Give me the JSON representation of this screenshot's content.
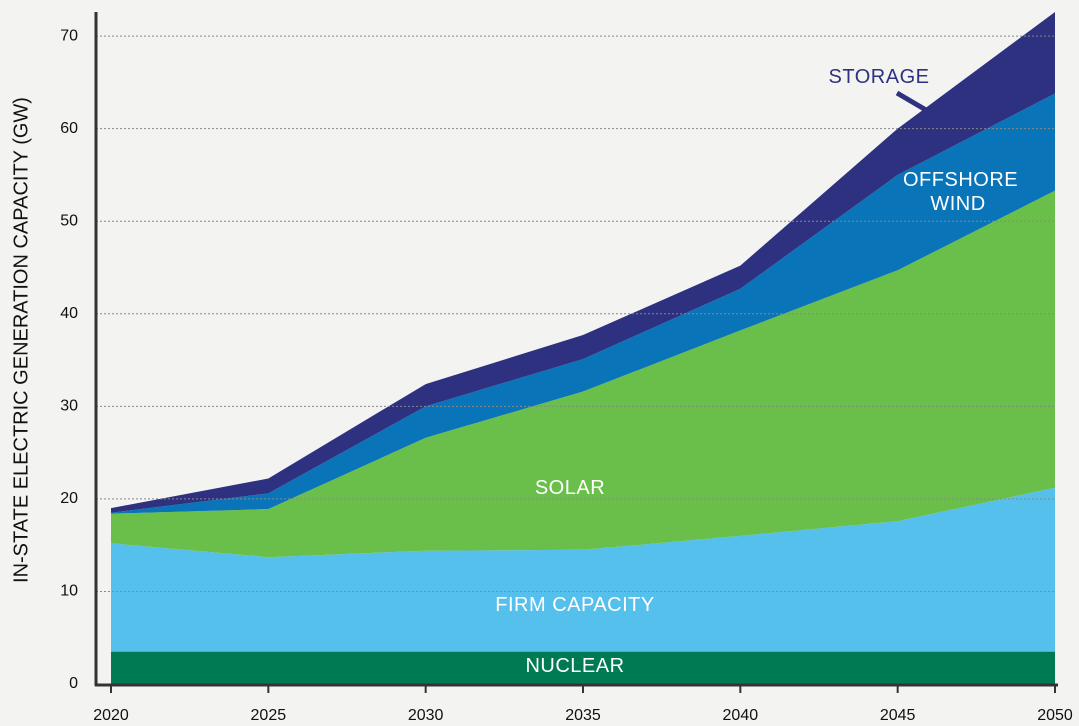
{
  "chart_data": {
    "type": "stacked_area",
    "y_label": "IN-STATE ELECTRIC GENERATION CAPACITY (GW)",
    "x": [
      2020,
      2025,
      2030,
      2035,
      2040,
      2045,
      2050
    ],
    "xlim": [
      2020,
      2050
    ],
    "xticks": [
      2020,
      2025,
      2030,
      2035,
      2040,
      2045,
      2050
    ],
    "ylim": [
      0,
      72.6
    ],
    "yticks": [
      0,
      10,
      20,
      30,
      40,
      50,
      60,
      70
    ],
    "grid": true,
    "series": [
      {
        "name": "NUCLEAR",
        "color": "#007a52",
        "values": [
          3.5,
          3.5,
          3.5,
          3.5,
          3.5,
          3.5,
          3.5
        ]
      },
      {
        "name": "FIRM CAPACITY",
        "color": "#55c0ec",
        "values": [
          11.7,
          10.2,
          10.9,
          11.0,
          12.5,
          14.1,
          17.7
        ]
      },
      {
        "name": "SOLAR",
        "color": "#6abf4b",
        "values": [
          3.2,
          5.2,
          12.2,
          17.1,
          22.2,
          27.1,
          32.1
        ]
      },
      {
        "name": "OFFSHORE WIND",
        "color": "#0a74b9",
        "values": [
          0.1,
          1.7,
          3.4,
          3.5,
          4.5,
          10.3,
          10.5
        ]
      },
      {
        "name": "STORAGE",
        "color": "#2e3180",
        "values": [
          0.5,
          1.6,
          2.4,
          2.6,
          2.5,
          5.0,
          8.8
        ]
      }
    ]
  }
}
